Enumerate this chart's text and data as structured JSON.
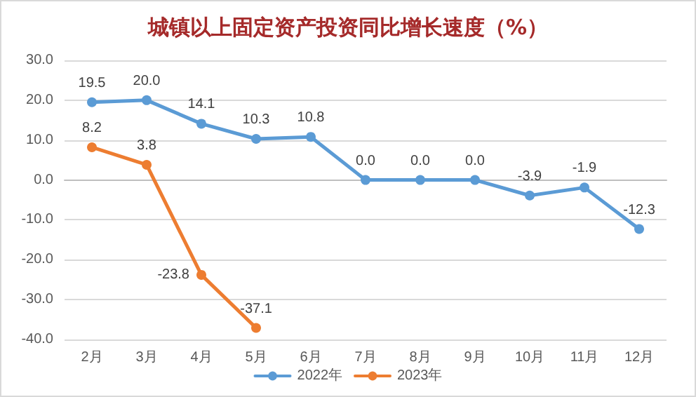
{
  "chart_data": {
    "type": "line",
    "title": "城镇以上固定资产投资同比增长速度（%）",
    "categories": [
      "2月",
      "3月",
      "4月",
      "5月",
      "6月",
      "7月",
      "8月",
      "9月",
      "10月",
      "11月",
      "12月"
    ],
    "series": [
      {
        "name": "2022年",
        "color": "#5b9bd5",
        "values": [
          19.5,
          20.0,
          14.1,
          10.3,
          10.8,
          0.0,
          0.0,
          0.0,
          -3.9,
          -1.9,
          -12.3
        ],
        "value_labels": [
          "19.5",
          "20.0",
          "14.1",
          "10.3",
          "10.8",
          "0.0",
          "0.0",
          "0.0",
          "-3.9",
          "-1.9",
          "-12.3"
        ]
      },
      {
        "name": "2023年",
        "color": "#ed7d31",
        "values": [
          8.2,
          3.8,
          -23.8,
          -37.1,
          null,
          null,
          null,
          null,
          null,
          null,
          null
        ],
        "value_labels": [
          "8.2",
          "3.8",
          "-23.8",
          "-37.1",
          null,
          null,
          null,
          null,
          null,
          null,
          null
        ]
      }
    ],
    "ylim": [
      -40,
      30
    ],
    "yticks": [
      {
        "value": -40,
        "label": "-40.0"
      },
      {
        "value": -30,
        "label": "-30.0"
      },
      {
        "value": -20,
        "label": "-20.0"
      },
      {
        "value": -10,
        "label": "-10.0"
      },
      {
        "value": 0,
        "label": "0.0"
      },
      {
        "value": 10,
        "label": "10.0"
      },
      {
        "value": 20,
        "label": "20.0"
      },
      {
        "value": 30,
        "label": "30.0"
      }
    ],
    "grid": "y",
    "legend": "bottom",
    "marker": "circle",
    "line_style": "solid"
  }
}
